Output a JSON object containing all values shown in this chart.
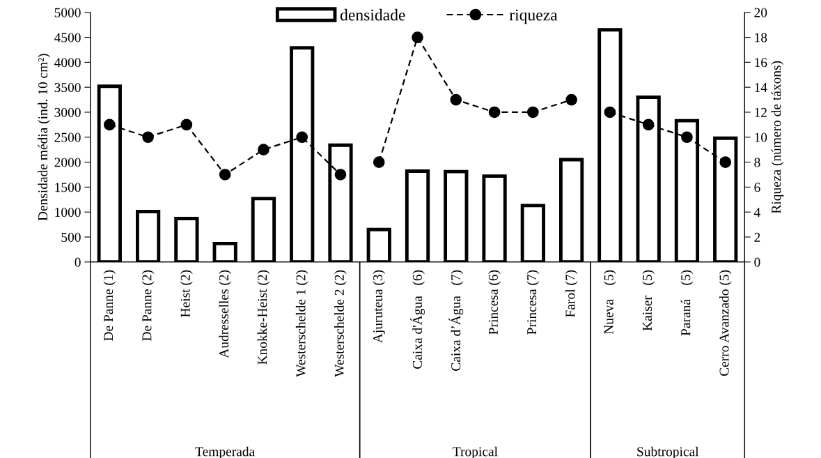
{
  "chart_data": [
    {
      "type": "bar",
      "xlabel": "Temperada",
      "ylabel": "Densidade média (ind. 10 cm²)",
      "categories": [
        "De Panne (1)",
        "De Panne (2)",
        "Heist (2)",
        "Audresselles (2)",
        "Knokke-Heist (2)",
        "Westerschelde 1 (2)",
        "Westerschelde 2 (2)"
      ],
      "series": [
        {
          "name": "densidade",
          "color": "#ffffff",
          "values": [
            3520,
            1010,
            870,
            370,
            1270,
            4290,
            2340
          ]
        },
        {
          "name": "riqueza",
          "type": "line",
          "axis": "y2",
          "color": "#000000",
          "marker": "circle",
          "line_style": "dashed",
          "values": [
            11,
            10,
            11,
            7,
            9,
            10,
            7
          ]
        }
      ],
      "ylim": [
        0,
        5000
      ],
      "yticks": [
        0,
        500,
        1000,
        1500,
        2000,
        2500,
        3000,
        3500,
        4000,
        4500,
        5000
      ],
      "y2lim": [
        0,
        20
      ],
      "tick_labels": [
        "x",
        "y"
      ],
      "legend": "top",
      "grid": false
    },
    {
      "type": "bar",
      "xlabel": "Tropical",
      "categories": [
        "Ajuruteua (3)",
        "Caixa d'Água   (6)",
        "Caixa d’Água   (7)",
        "Princesa (6)",
        "Princesa (7)",
        "Farol (7)"
      ],
      "series": [
        {
          "color": "#ffffff",
          "values": [
            650,
            1820,
            1810,
            1720,
            1130,
            2050
          ]
        },
        {
          "type": "line",
          "axis": "y2",
          "color": "#000000",
          "marker": "circle",
          "line_style": "dashed",
          "values": [
            8,
            18,
            13,
            12,
            12,
            13
          ]
        }
      ],
      "ylim": [
        0,
        5000
      ],
      "y2lim": [
        0,
        20
      ],
      "tick_labels": "x",
      "grid": false
    },
    {
      "type": "bar",
      "xlabel": "Subtropical",
      "y2label": "Riqueza (número de táxons)",
      "categories": [
        "Nueva    (5)",
        "Kaiser   (5)",
        "Paraná    (5)",
        "Cerro Avanzado (5)"
      ],
      "series": [
        {
          "color": "#ffffff",
          "values": [
            4650,
            3300,
            2830,
            2480
          ]
        },
        {
          "type": "line",
          "axis": "y2",
          "color": "#000000",
          "marker": "circle",
          "line_style": "dashed",
          "values": [
            12,
            11,
            10,
            8
          ]
        }
      ],
      "ylim": [
        0,
        5000
      ],
      "y2lim": [
        0,
        20
      ],
      "y2ticks": [
        0,
        2,
        4,
        6,
        8,
        10,
        12,
        14,
        16,
        18,
        20
      ],
      "tick_labels": [
        "x",
        "y2"
      ],
      "grid": false
    }
  ]
}
